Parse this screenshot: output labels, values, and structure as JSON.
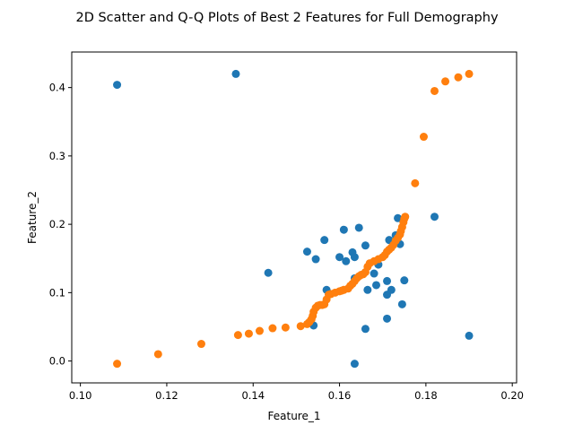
{
  "chart_data": {
    "type": "scatter",
    "title": "2D Scatter and Q-Q Plots of Best 2 Features for Full Demography",
    "xlabel": "Feature_1",
    "ylabel": "Feature_2",
    "xlim": [
      0.098,
      0.201
    ],
    "ylim": [
      -0.032,
      0.452
    ],
    "x_ticks": [
      0.1,
      0.12,
      0.14,
      0.16,
      0.18,
      0.2
    ],
    "x_tick_labels": [
      "0.10",
      "0.12",
      "0.14",
      "0.16",
      "0.18",
      "0.20"
    ],
    "y_ticks": [
      0.0,
      0.1,
      0.2,
      0.3,
      0.4
    ],
    "y_tick_labels": [
      "0.0",
      "0.1",
      "0.2",
      "0.3",
      "0.4"
    ],
    "grid": false,
    "legend": false,
    "series": [
      {
        "color": "#1f77b4",
        "points": [
          [
            0.1085,
            0.404
          ],
          [
            0.136,
            0.42
          ],
          [
            0.1435,
            0.129
          ],
          [
            0.1525,
            0.16
          ],
          [
            0.1545,
            0.149
          ],
          [
            0.1565,
            0.177
          ],
          [
            0.154,
            0.052
          ],
          [
            0.157,
            0.104
          ],
          [
            0.16,
            0.152
          ],
          [
            0.161,
            0.192
          ],
          [
            0.1615,
            0.146
          ],
          [
            0.163,
            0.159
          ],
          [
            0.1635,
            0.152
          ],
          [
            0.1635,
            0.121
          ],
          [
            0.1645,
            0.195
          ],
          [
            0.166,
            0.169
          ],
          [
            0.1665,
            0.104
          ],
          [
            0.168,
            0.128
          ],
          [
            0.1685,
            0.111
          ],
          [
            0.169,
            0.141
          ],
          [
            0.171,
            0.117
          ],
          [
            0.171,
            0.097
          ],
          [
            0.1715,
            0.177
          ],
          [
            0.172,
            0.104
          ],
          [
            0.173,
            0.184
          ],
          [
            0.1735,
            0.209
          ],
          [
            0.174,
            0.171
          ],
          [
            0.1745,
            0.083
          ],
          [
            0.175,
            0.118
          ],
          [
            0.171,
            0.062
          ],
          [
            0.166,
            0.047
          ],
          [
            0.1635,
            -0.004
          ],
          [
            0.182,
            0.211
          ],
          [
            0.19,
            0.037
          ]
        ]
      },
      {
        "color": "#ff7f0e",
        "points": [
          [
            0.1085,
            -0.004
          ],
          [
            0.118,
            0.01
          ],
          [
            0.128,
            0.025
          ],
          [
            0.1365,
            0.038
          ],
          [
            0.139,
            0.04
          ],
          [
            0.1415,
            0.044
          ],
          [
            0.1445,
            0.048
          ],
          [
            0.1475,
            0.049
          ],
          [
            0.151,
            0.051
          ],
          [
            0.1525,
            0.054
          ],
          [
            0.153,
            0.057
          ],
          [
            0.1535,
            0.061
          ],
          [
            0.1538,
            0.066
          ],
          [
            0.154,
            0.072
          ],
          [
            0.1545,
            0.078
          ],
          [
            0.155,
            0.081
          ],
          [
            0.1555,
            0.082
          ],
          [
            0.156,
            0.082
          ],
          [
            0.1565,
            0.083
          ],
          [
            0.157,
            0.09
          ],
          [
            0.1575,
            0.097
          ],
          [
            0.158,
            0.098
          ],
          [
            0.159,
            0.1
          ],
          [
            0.16,
            0.102
          ],
          [
            0.1605,
            0.103
          ],
          [
            0.161,
            0.104
          ],
          [
            0.162,
            0.106
          ],
          [
            0.1625,
            0.11
          ],
          [
            0.163,
            0.113
          ],
          [
            0.1635,
            0.117
          ],
          [
            0.164,
            0.121
          ],
          [
            0.1645,
            0.124
          ],
          [
            0.165,
            0.126
          ],
          [
            0.1655,
            0.127
          ],
          [
            0.166,
            0.13
          ],
          [
            0.1665,
            0.138
          ],
          [
            0.167,
            0.143
          ],
          [
            0.168,
            0.146
          ],
          [
            0.169,
            0.149
          ],
          [
            0.17,
            0.152
          ],
          [
            0.1705,
            0.155
          ],
          [
            0.171,
            0.16
          ],
          [
            0.1715,
            0.163
          ],
          [
            0.172,
            0.166
          ],
          [
            0.1725,
            0.17
          ],
          [
            0.173,
            0.176
          ],
          [
            0.1735,
            0.18
          ],
          [
            0.174,
            0.185
          ],
          [
            0.1742,
            0.19
          ],
          [
            0.1745,
            0.196
          ],
          [
            0.1748,
            0.203
          ],
          [
            0.175,
            0.208
          ],
          [
            0.1752,
            0.211
          ],
          [
            0.1775,
            0.26
          ],
          [
            0.1795,
            0.328
          ],
          [
            0.182,
            0.395
          ],
          [
            0.1845,
            0.409
          ],
          [
            0.1875,
            0.415
          ],
          [
            0.19,
            0.42
          ]
        ]
      }
    ]
  }
}
